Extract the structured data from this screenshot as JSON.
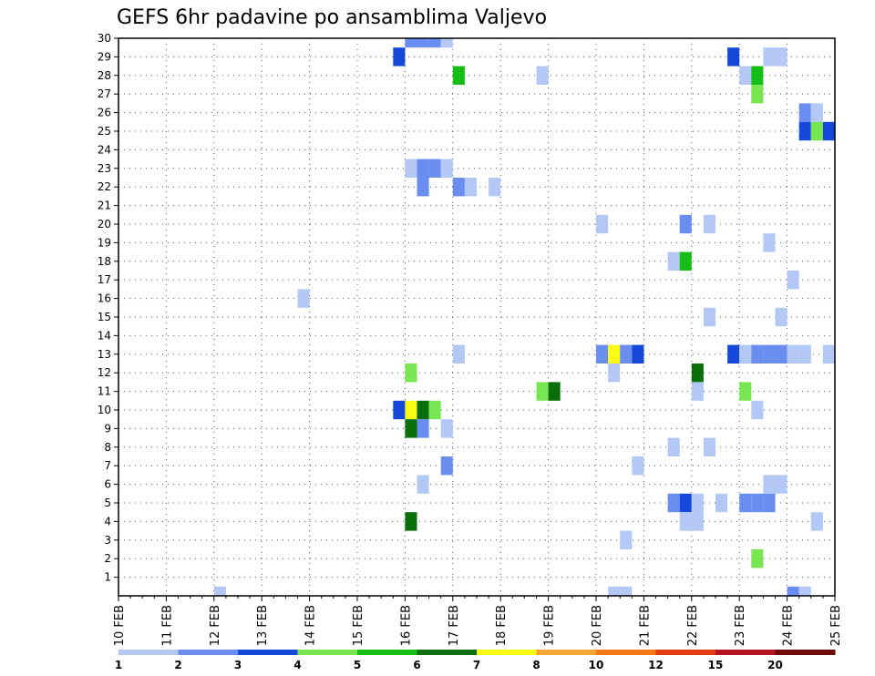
{
  "chart_data": {
    "type": "heatmap",
    "title": "GEFS 6hr padavine po ansamblima Valjevo",
    "y_ticks": [
      "1",
      "2",
      "3",
      "4",
      "5",
      "6",
      "7",
      "8",
      "9",
      "10",
      "11",
      "12",
      "13",
      "14",
      "15",
      "16",
      "17",
      "18",
      "19",
      "20",
      "21",
      "22",
      "23",
      "24",
      "25",
      "26",
      "27",
      "28",
      "29",
      "30"
    ],
    "x_ticks": [
      "10 FEB",
      "11 FEB",
      "12 FEB",
      "13 FEB",
      "14 FEB",
      "15 FEB",
      "16 FEB",
      "17 FEB",
      "18 FEB",
      "19 FEB",
      "20 FEB",
      "21 FEB",
      "22 FEB",
      "23 FEB",
      "24 FEB",
      "25 FEB"
    ],
    "x_range_days": [
      10,
      25
    ],
    "y_range_members": [
      0,
      30
    ],
    "grid": true,
    "legend": {
      "placement": "bottom",
      "labels": [
        "1",
        "2",
        "3",
        "4",
        "5",
        "6",
        "7",
        "8",
        "10",
        "12",
        "15",
        "20"
      ],
      "colors": [
        "#b4c8f5",
        "#6a8ef0",
        "#1648dc",
        "#78e650",
        "#14be14",
        "#0a6e0a",
        "#fafa14",
        "#f5a532",
        "#f57814",
        "#e13c14",
        "#b4141e",
        "#6e0a0a"
      ]
    },
    "colors": {
      "1": "#b4c8f5",
      "2": "#6a8ef0",
      "3": "#1648dc",
      "4": "#78e650",
      "5": "#14be14",
      "6": "#0a6e0a",
      "7": "#fafa14",
      "8": "#f5a532",
      "10": "#f57814",
      "12": "#e13c14",
      "15": "#b4141e",
      "20": "#6e0a0a"
    },
    "cells_format": "[day, member, class]",
    "cells": [
      [
        12.0,
        0,
        1
      ],
      [
        16.0,
        30,
        2
      ],
      [
        16.25,
        30,
        2
      ],
      [
        16.5,
        30,
        2
      ],
      [
        16.75,
        30,
        1
      ],
      [
        15.75,
        29,
        3
      ],
      [
        22.75,
        29,
        3
      ],
      [
        23.5,
        29,
        1
      ],
      [
        23.75,
        29,
        1
      ],
      [
        17.0,
        28,
        5
      ],
      [
        18.75,
        28,
        1
      ],
      [
        23.0,
        28,
        1
      ],
      [
        23.25,
        28,
        5
      ],
      [
        23.25,
        27,
        4
      ],
      [
        24.25,
        26,
        2
      ],
      [
        24.5,
        26,
        1
      ],
      [
        24.25,
        25,
        3
      ],
      [
        24.5,
        25,
        4
      ],
      [
        24.75,
        25,
        3
      ],
      [
        16.0,
        23,
        1
      ],
      [
        16.25,
        23,
        2
      ],
      [
        16.5,
        23,
        2
      ],
      [
        16.75,
        23,
        1
      ],
      [
        16.25,
        22,
        2
      ],
      [
        17.0,
        22,
        2
      ],
      [
        17.25,
        22,
        1
      ],
      [
        17.75,
        22,
        1
      ],
      [
        20.0,
        20,
        1
      ],
      [
        21.75,
        20,
        2
      ],
      [
        22.25,
        20,
        1
      ],
      [
        23.5,
        19,
        1
      ],
      [
        21.5,
        18,
        1
      ],
      [
        21.75,
        18,
        5
      ],
      [
        24.0,
        17,
        1
      ],
      [
        13.75,
        16,
        1
      ],
      [
        22.25,
        15,
        1
      ],
      [
        23.75,
        15,
        1
      ],
      [
        17.0,
        13,
        1
      ],
      [
        20.0,
        13,
        2
      ],
      [
        20.25,
        13,
        7
      ],
      [
        20.5,
        13,
        2
      ],
      [
        20.75,
        13,
        3
      ],
      [
        22.75,
        13,
        3
      ],
      [
        23.0,
        13,
        1
      ],
      [
        23.25,
        13,
        2
      ],
      [
        23.5,
        13,
        2
      ],
      [
        23.75,
        13,
        2
      ],
      [
        24.0,
        13,
        1
      ],
      [
        24.25,
        13,
        1
      ],
      [
        24.75,
        13,
        1
      ],
      [
        16.0,
        12,
        4
      ],
      [
        20.25,
        12,
        1
      ],
      [
        22.0,
        12,
        6
      ],
      [
        18.75,
        11,
        4
      ],
      [
        19.0,
        11,
        6
      ],
      [
        22.0,
        11,
        1
      ],
      [
        23.0,
        11,
        4
      ],
      [
        15.75,
        10,
        3
      ],
      [
        16.0,
        10,
        7
      ],
      [
        16.25,
        10,
        6
      ],
      [
        16.5,
        10,
        4
      ],
      [
        23.25,
        10,
        1
      ],
      [
        16.0,
        9,
        6
      ],
      [
        16.25,
        9,
        2
      ],
      [
        16.75,
        9,
        1
      ],
      [
        21.5,
        8,
        1
      ],
      [
        22.25,
        8,
        1
      ],
      [
        16.75,
        7,
        2
      ],
      [
        20.75,
        7,
        1
      ],
      [
        16.25,
        6,
        1
      ],
      [
        23.5,
        6,
        1
      ],
      [
        23.75,
        6,
        1
      ],
      [
        21.5,
        5,
        2
      ],
      [
        21.75,
        5,
        3
      ],
      [
        22.0,
        5,
        1
      ],
      [
        22.5,
        5,
        1
      ],
      [
        23.0,
        5,
        2
      ],
      [
        23.25,
        5,
        2
      ],
      [
        23.5,
        5,
        2
      ],
      [
        16.0,
        4,
        6
      ],
      [
        21.75,
        4,
        1
      ],
      [
        22.0,
        4,
        1
      ],
      [
        24.5,
        4,
        1
      ],
      [
        20.5,
        3,
        1
      ],
      [
        23.25,
        2,
        4
      ],
      [
        20.25,
        0,
        1
      ],
      [
        20.5,
        0,
        1
      ],
      [
        24.0,
        0,
        2
      ],
      [
        24.25,
        0,
        1
      ]
    ]
  }
}
